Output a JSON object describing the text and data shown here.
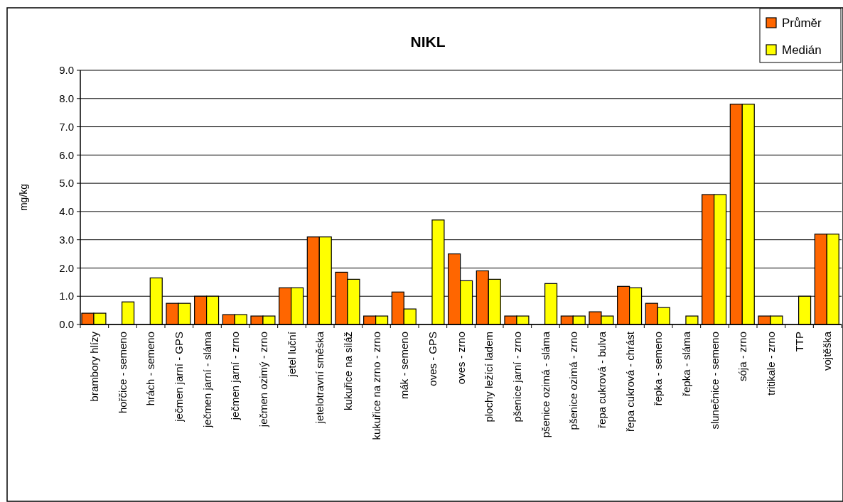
{
  "chart_data": {
    "type": "bar",
    "title": "NIKL",
    "ylabel": "mg/kg",
    "categories": [
      "brambory hlízy",
      "hořčice - semeno",
      "hrách - semeno",
      "ječmen jarní - GPS",
      "ječmen jarní - sláma",
      "ječmen jarní - zrno",
      "ječmen ozimý - zrno",
      "jetel luční",
      "jetelotravní směska",
      "kukuřice na siláž",
      "kukuřice na zrno - zrno",
      "mák - semeno",
      "oves - GPS",
      "oves - zrno",
      "plochy ležící ladem",
      "pšenice jarní - zrno",
      "pšenice ozimá - sláma",
      "pšenice ozimá - zrno",
      "řepa cukrová - bulva",
      "řepa cukrová - chrást",
      "řepka - semeno",
      "řepka - sláma",
      "slunečnice - semeno",
      "sója - zrno",
      "tritikale - zrno",
      "TTP",
      "vojtěška"
    ],
    "series": [
      {
        "name": "Průměr",
        "color": "#ff6600",
        "values": [
          0.4,
          null,
          null,
          0.75,
          1.0,
          0.35,
          0.3,
          1.3,
          3.1,
          1.85,
          0.3,
          1.15,
          null,
          2.5,
          1.9,
          0.3,
          null,
          0.3,
          0.45,
          1.35,
          0.75,
          null,
          4.6,
          7.8,
          0.3,
          null,
          3.2
        ]
      },
      {
        "name": "Medián",
        "color": "#ffff00",
        "values": [
          0.4,
          0.8,
          1.65,
          0.75,
          1.0,
          0.35,
          0.3,
          1.3,
          3.1,
          1.6,
          0.3,
          0.55,
          3.7,
          1.55,
          1.6,
          0.3,
          1.45,
          0.3,
          0.3,
          1.3,
          0.6,
          0.3,
          4.6,
          7.8,
          0.3,
          1.0,
          3.2
        ]
      }
    ],
    "ylim": [
      0,
      9
    ],
    "yticks": [
      {
        "value": 0,
        "label": "0.0"
      },
      {
        "value": 1,
        "label": "1.0"
      },
      {
        "value": 2,
        "label": "2.0"
      },
      {
        "value": 3,
        "label": "3.0"
      },
      {
        "value": 4,
        "label": "4.0"
      },
      {
        "value": 5,
        "label": "5.0"
      },
      {
        "value": 6,
        "label": "6.0"
      },
      {
        "value": 7,
        "label": "7.0"
      },
      {
        "value": 8,
        "label": "8.0"
      },
      {
        "value": 9,
        "label": "9.0"
      }
    ],
    "grid": "y",
    "legend": "top right"
  }
}
